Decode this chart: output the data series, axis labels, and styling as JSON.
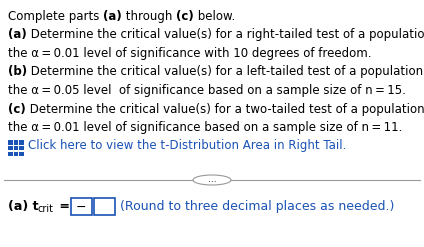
{
  "bg_color": "#ffffff",
  "text_color": "#000000",
  "blue_color": "#1a52b5",
  "box_color": "#1a52b5",
  "divider_color": "#999999",
  "font_size": 8.5,
  "font_size_small": 7.0,
  "lines": [
    {
      "parts": [
        {
          "text": "Complete parts ",
          "bold": false
        },
        {
          "text": "(a)",
          "bold": true
        },
        {
          "text": " through ",
          "bold": false
        },
        {
          "text": "(c)",
          "bold": true
        },
        {
          "text": " below.",
          "bold": false
        }
      ]
    },
    {
      "parts": [
        {
          "text": "(a)",
          "bold": true
        },
        {
          "text": " Determine the critical value(s) for a right-tailed test of a population mean at",
          "bold": false
        }
      ]
    },
    {
      "parts": [
        {
          "text": "the α = 0.01 level of significance with 10 degrees of freedom.",
          "bold": false
        }
      ]
    },
    {
      "parts": [
        {
          "text": "(b)",
          "bold": true
        },
        {
          "text": " Determine the critical value(s) for a left-tailed test of a population mean at",
          "bold": false
        }
      ]
    },
    {
      "parts": [
        {
          "text": "the α = 0.05 level  of significance based on a sample size of n = 15.",
          "bold": false
        }
      ]
    },
    {
      "parts": [
        {
          "text": "(c)",
          "bold": true
        },
        {
          "text": " Determine the critical value(s) for a two-tailed test of a population mean at",
          "bold": false
        }
      ]
    },
    {
      "parts": [
        {
          "text": "the α = 0.01 level of significance based on a sample size of n = 11.",
          "bold": false
        }
      ]
    }
  ],
  "click_text": "  Click here to view the t-Distribution Area in Right Tail.",
  "bottom_text_a": "(a) t",
  "bottom_sub": "crit",
  "bottom_eq": " = ",
  "bottom_minus": "−",
  "bottom_round": "(Round to three decimal places as needed.)"
}
